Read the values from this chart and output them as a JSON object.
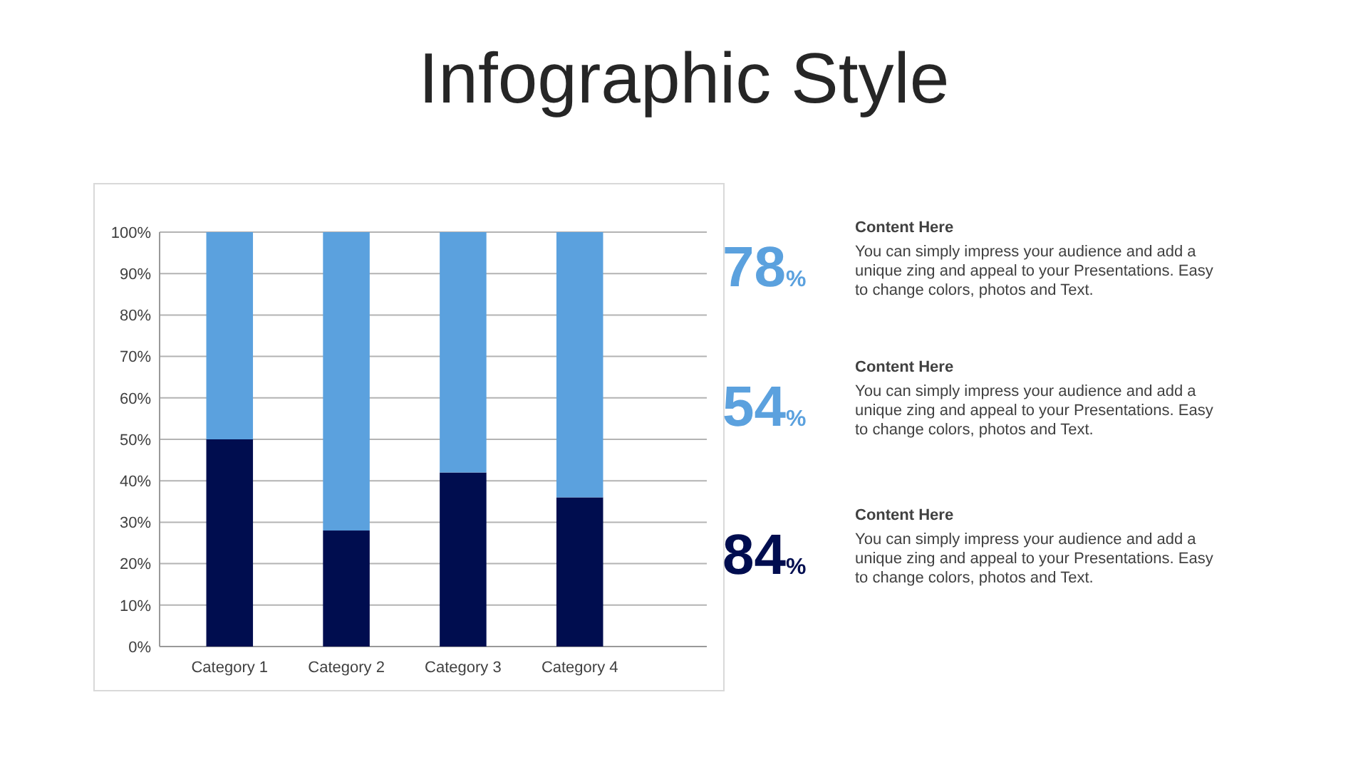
{
  "chart_data": [
    {
      "type": "bar",
      "title": "Infographic Style",
      "stacked": true,
      "grid": "y",
      "categories": [
        "Category 1",
        "Category 2",
        "Category 3",
        "Category 4"
      ],
      "series": [
        {
          "color": "#000d4f",
          "values": [
            50,
            28,
            42,
            36
          ]
        },
        {
          "color": "#5ba1de",
          "values": [
            50,
            72,
            58,
            64
          ]
        }
      ],
      "ylim": [
        0,
        100
      ],
      "yticks": [
        {
          "value": 0,
          "label": "0%"
        },
        {
          "value": 10,
          "label": "10%"
        },
        {
          "value": 20,
          "label": "20%"
        },
        {
          "value": 30,
          "label": "30%"
        },
        {
          "value": 40,
          "label": "40%"
        },
        {
          "value": 50,
          "label": "50%"
        },
        {
          "value": 60,
          "label": "60%"
        },
        {
          "value": 70,
          "label": "70%"
        },
        {
          "value": 80,
          "label": "80%"
        },
        {
          "value": 90,
          "label": "90%"
        },
        {
          "value": 100,
          "label": "100%"
        }
      ]
    },
    {
      "type": "other",
      "annotations": [
        "78%",
        "Content  Here",
        "You can simply impress your audience and add a unique zing and appeal to your Presentations. Easy to change colors, photos and Text.",
        "54%",
        "Content  Here",
        "You can simply impress your audience and add a unique zing and appeal to your Presentations. Easy to change colors, photos and Text.",
        "84%",
        "Content  Here",
        "You can simply impress your audience and add a unique zing and appeal to your Presentations. Easy to change colors, photos and Text."
      ]
    }
  ]
}
